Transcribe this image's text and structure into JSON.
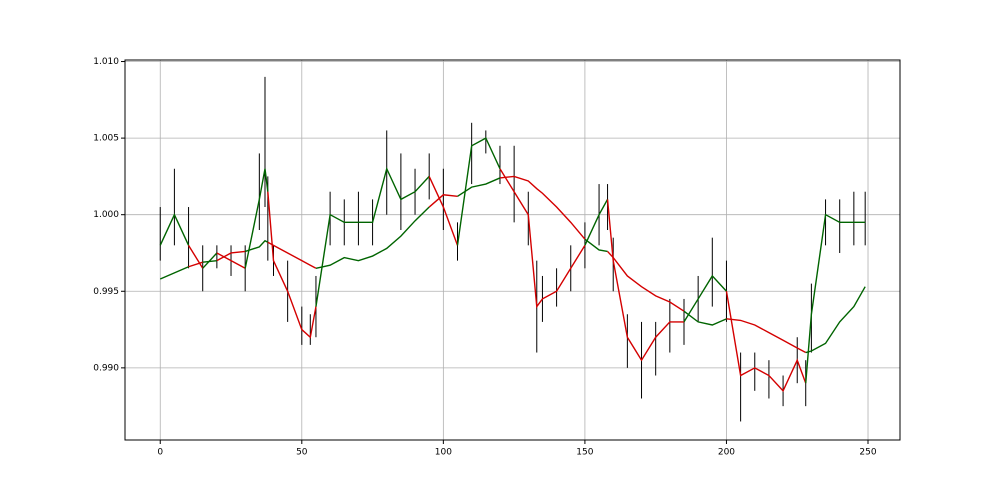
{
  "chart_data": {
    "type": "ohlc_ma",
    "x": [
      0,
      5,
      10,
      15,
      20,
      25,
      30,
      35,
      37,
      38,
      40,
      45,
      50,
      53,
      55,
      60,
      65,
      70,
      75,
      80,
      85,
      90,
      95,
      100,
      105,
      110,
      115,
      120,
      125,
      130,
      133,
      135,
      140,
      145,
      150,
      155,
      158,
      160,
      165,
      170,
      175,
      180,
      185,
      190,
      195,
      200,
      205,
      210,
      215,
      220,
      225,
      228,
      230,
      235,
      240,
      245,
      249
    ],
    "close": [
      0.998,
      1.0,
      0.998,
      0.9965,
      0.9975,
      0.997,
      0.9965,
      1.001,
      1.003,
      1.0015,
      0.997,
      0.995,
      0.9925,
      0.992,
      0.994,
      1.0,
      0.9995,
      0.9995,
      0.9995,
      1.003,
      1.001,
      1.0015,
      1.0025,
      1.0005,
      0.998,
      1.0045,
      1.005,
      1.003,
      1.0015,
      1.0,
      0.994,
      0.9945,
      0.995,
      0.9965,
      0.998,
      1.0,
      1.001,
      0.997,
      0.992,
      0.9905,
      0.992,
      0.993,
      0.993,
      0.9945,
      0.996,
      0.995,
      0.9895,
      0.99,
      0.9895,
      0.9885,
      0.9905,
      0.989,
      0.9935,
      1.0,
      0.9995,
      0.9995,
      0.9995
    ],
    "high": [
      1.0005,
      1.003,
      1.0005,
      0.998,
      0.998,
      0.998,
      0.998,
      1.004,
      1.009,
      1.0025,
      0.998,
      0.997,
      0.994,
      0.9935,
      0.996,
      1.0015,
      1.001,
      1.0015,
      1.001,
      1.0055,
      1.004,
      1.003,
      1.004,
      1.003,
      0.9995,
      1.006,
      1.0055,
      1.0045,
      1.0045,
      1.0015,
      0.997,
      0.996,
      0.9965,
      0.998,
      0.9995,
      1.002,
      1.002,
      0.9985,
      0.9935,
      0.993,
      0.993,
      0.9945,
      0.9945,
      0.996,
      0.9985,
      0.997,
      0.991,
      0.991,
      0.9905,
      0.9895,
      0.992,
      0.9905,
      0.9955,
      1.001,
      1.001,
      1.0015,
      1.0015
    ],
    "low": [
      0.997,
      0.998,
      0.9965,
      0.995,
      0.9965,
      0.996,
      0.995,
      0.999,
      1.0005,
      0.997,
      0.996,
      0.993,
      0.9915,
      0.9915,
      0.992,
      0.998,
      0.998,
      0.998,
      0.998,
      1.0,
      0.999,
      1.0,
      1.001,
      0.999,
      0.997,
      1.002,
      1.004,
      1.002,
      0.9995,
      0.998,
      0.991,
      0.993,
      0.994,
      0.995,
      0.9965,
      0.998,
      0.999,
      0.995,
      0.99,
      0.988,
      0.9895,
      0.991,
      0.9915,
      0.993,
      0.994,
      0.993,
      0.9865,
      0.9885,
      0.988,
      0.9875,
      0.989,
      0.9875,
      0.991,
      0.998,
      0.9975,
      0.998,
      0.998
    ],
    "ma": [
      0.9958,
      0.9962,
      0.9966,
      0.9969,
      0.997,
      0.9975,
      0.9976,
      0.9979,
      0.9983,
      0.9982,
      0.998,
      0.9975,
      0.997,
      0.9967,
      0.9965,
      0.9967,
      0.9972,
      0.997,
      0.9973,
      0.9978,
      0.9986,
      0.9996,
      1.0005,
      1.0013,
      1.0012,
      1.0018,
      1.002,
      1.0024,
      1.0025,
      1.0022,
      1.0017,
      1.0014,
      1.0005,
      0.9995,
      0.9984,
      0.9977,
      0.9976,
      0.9972,
      0.996,
      0.9953,
      0.9947,
      0.9943,
      0.9937,
      0.993,
      0.9928,
      0.9932,
      0.9931,
      0.9928,
      0.9923,
      0.9918,
      0.9913,
      0.991,
      0.9911,
      0.9916,
      0.993,
      0.994,
      0.9953
    ],
    "up_color": "#006400",
    "down_color": "#d40000",
    "bar_color": "#000000",
    "xlim": [
      -12.45,
      261.3
    ],
    "ylim": [
      0.98529,
      1.0101
    ],
    "xticks": [
      0,
      50,
      100,
      150,
      200,
      250
    ],
    "yticks": [
      {
        "value": 0.99,
        "label": "0.990"
      },
      0.995,
      {
        "value": 1.0,
        "label": "1.000"
      },
      1.005,
      {
        "value": 1.01,
        "label": "1.010"
      }
    ],
    "grid": true
  }
}
